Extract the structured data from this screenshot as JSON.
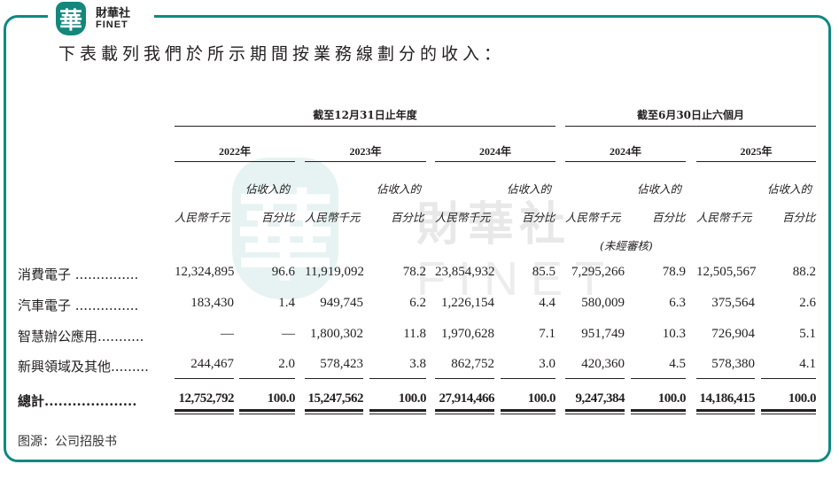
{
  "brand": {
    "logo_char": "華",
    "name_cn": "財華社",
    "name_en": "FINET",
    "accent_color": "#0f8a80"
  },
  "intro": "下表載列我們於所示期間按業務線劃分的收入：",
  "watermark": {
    "char": "華",
    "cn": "財華社",
    "en": "FINET"
  },
  "table": {
    "period_headers": [
      {
        "label": "截至12月31日止年度"
      },
      {
        "label": "截至6月30日止六個月"
      }
    ],
    "years": [
      "2022年",
      "2023年",
      "2024年",
      "2024年",
      "2025年"
    ],
    "sub_headers": {
      "amount": "人民幣千元",
      "pct_line1": "佔收入的",
      "pct_line2": "百分比",
      "unaudited": "(未經審核)"
    },
    "rows": [
      {
        "label": "消費電子 ...............",
        "values": [
          "12,324,895",
          "96.6",
          "11,919,092",
          "78.2",
          "23,854,932",
          "85.5",
          "7,295,266",
          "78.9",
          "12,505,567",
          "88.2"
        ]
      },
      {
        "label": "汽車電子 ...............",
        "values": [
          "183,430",
          "1.4",
          "949,745",
          "6.2",
          "1,226,154",
          "4.4",
          "580,009",
          "6.3",
          "375,564",
          "2.6"
        ]
      },
      {
        "label": "智慧辦公應用...........",
        "values": [
          "—",
          "—",
          "1,800,302",
          "11.8",
          "1,970,628",
          "7.1",
          "951,749",
          "10.3",
          "726,904",
          "5.1"
        ]
      },
      {
        "label": "新興領域及其他.........",
        "values": [
          "244,467",
          "2.0",
          "578,423",
          "3.8",
          "862,752",
          "3.0",
          "420,360",
          "4.5",
          "578,380",
          "4.1"
        ]
      }
    ],
    "total": {
      "label": "總計....................",
      "values": [
        "12,752,792",
        "100.0",
        "15,247,562",
        "100.0",
        "27,914,466",
        "100.0",
        "9,247,384",
        "100.0",
        "14,186,415",
        "100.0"
      ]
    }
  },
  "source": "图源：公司招股书"
}
